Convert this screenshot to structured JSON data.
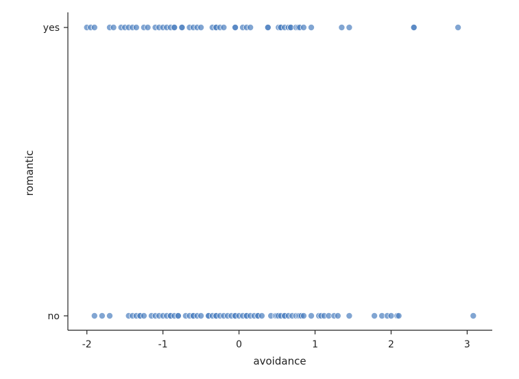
{
  "chart_data": {
    "type": "scatter",
    "title": "",
    "xlabel": "avoidance",
    "ylabel": "romantic",
    "x_ticks": [
      -2,
      -1,
      0,
      1,
      2,
      3
    ],
    "x_tick_labels": [
      "-2",
      "-1",
      "0",
      "1",
      "2",
      "3"
    ],
    "xlim": [
      -2.25,
      3.33
    ],
    "y_categories": [
      "no",
      "yes"
    ],
    "grid": false,
    "legend": "none",
    "marker_color": "#4c7fbf",
    "marker_alpha": 0.7,
    "series": [
      {
        "category": "yes",
        "x": [
          -2.0,
          -1.95,
          -1.9,
          -1.7,
          -1.65,
          -1.55,
          -1.5,
          -1.45,
          -1.4,
          -1.35,
          -1.25,
          -1.2,
          -1.1,
          -1.05,
          -1.0,
          -0.95,
          -0.9,
          -0.85,
          -0.85,
          -0.75,
          -0.75,
          -0.65,
          -0.6,
          -0.55,
          -0.5,
          -0.35,
          -0.3,
          -0.3,
          -0.25,
          -0.2,
          -0.05,
          -0.05,
          0.05,
          0.1,
          0.15,
          0.38,
          0.38,
          0.52,
          0.55,
          0.55,
          0.6,
          0.65,
          0.68,
          0.68,
          0.75,
          0.78,
          0.8,
          0.85,
          0.95,
          1.35,
          1.45,
          2.3,
          2.3,
          2.88
        ]
      },
      {
        "category": "no",
        "x": [
          -1.9,
          -1.8,
          -1.7,
          -1.45,
          -1.4,
          -1.35,
          -1.3,
          -1.3,
          -1.25,
          -1.15,
          -1.1,
          -1.05,
          -1.0,
          -0.95,
          -0.9,
          -0.9,
          -0.85,
          -0.8,
          -0.8,
          -0.7,
          -0.65,
          -0.6,
          -0.6,
          -0.55,
          -0.5,
          -0.4,
          -0.4,
          -0.35,
          -0.3,
          -0.3,
          -0.25,
          -0.2,
          -0.15,
          -0.1,
          -0.05,
          -0.05,
          0.0,
          0.05,
          0.1,
          0.1,
          0.15,
          0.2,
          0.25,
          0.25,
          0.3,
          0.42,
          0.48,
          0.5,
          0.52,
          0.55,
          0.6,
          0.6,
          0.65,
          0.7,
          0.75,
          0.78,
          0.8,
          0.82,
          0.85,
          0.95,
          1.05,
          1.08,
          1.12,
          1.18,
          1.25,
          1.3,
          1.45,
          1.78,
          1.88,
          1.95,
          2.0,
          2.08,
          2.1,
          3.08
        ]
      }
    ]
  }
}
